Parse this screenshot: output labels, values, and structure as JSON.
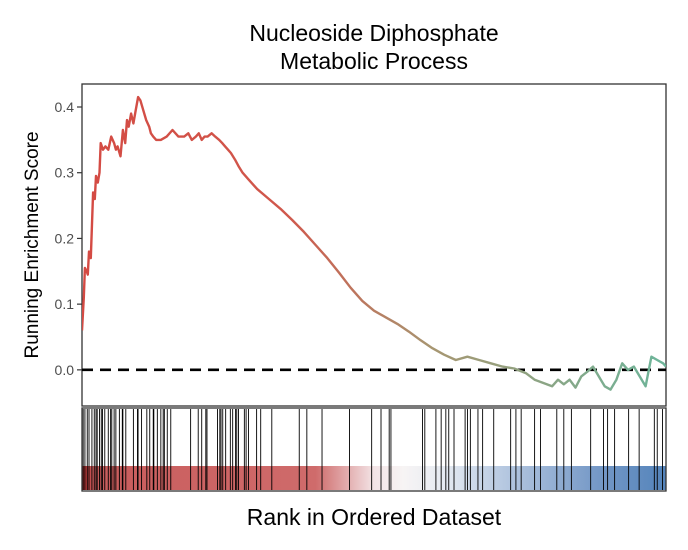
{
  "chart_data": {
    "type": "line",
    "title_lines": [
      "Nucleoside Diphosphate",
      "Metabolic Process"
    ],
    "xlabel": "Rank in Ordered Dataset",
    "ylabel": "Running Enrichment Score",
    "xlim": [
      0,
      1000
    ],
    "ylim": [
      -0.055,
      0.435
    ],
    "y_ticks": [
      0.0,
      0.1,
      0.2,
      0.3,
      0.4
    ],
    "y_tick_labels": [
      "0.0",
      "0.1",
      "0.2",
      "0.3",
      "0.4"
    ],
    "reference_line": 0.0,
    "grid": false,
    "legend": "none",
    "series": [
      {
        "x": [
          0,
          3,
          5,
          8,
          10,
          12,
          15,
          19,
          22,
          24,
          27,
          30,
          32,
          36,
          40,
          45,
          50,
          55,
          58,
          61,
          66,
          70,
          74,
          77,
          80,
          84,
          88,
          92,
          96,
          100,
          105,
          110,
          115,
          118,
          122,
          127,
          135,
          145,
          155,
          165,
          175,
          182,
          188,
          195,
          200,
          205,
          210,
          215,
          222,
          228,
          235,
          240,
          245,
          250,
          255,
          262,
          268,
          275,
          285,
          300,
          320,
          340,
          360,
          380,
          400,
          420,
          440,
          460,
          480,
          500,
          520,
          540,
          560,
          580,
          600,
          620,
          640,
          660,
          680,
          700,
          720,
          740,
          760,
          775,
          790,
          805,
          815,
          825,
          835,
          845,
          855,
          865,
          875,
          885,
          895,
          905,
          915,
          925,
          935,
          945,
          955,
          965,
          975,
          985,
          995,
          1000
        ],
        "y": [
          0.06,
          0.11,
          0.155,
          0.15,
          0.145,
          0.18,
          0.17,
          0.27,
          0.26,
          0.295,
          0.285,
          0.3,
          0.345,
          0.335,
          0.34,
          0.335,
          0.355,
          0.345,
          0.335,
          0.34,
          0.325,
          0.365,
          0.345,
          0.38,
          0.37,
          0.39,
          0.375,
          0.395,
          0.415,
          0.41,
          0.395,
          0.38,
          0.37,
          0.36,
          0.355,
          0.35,
          0.35,
          0.355,
          0.365,
          0.355,
          0.355,
          0.36,
          0.35,
          0.355,
          0.36,
          0.35,
          0.355,
          0.355,
          0.36,
          0.355,
          0.35,
          0.345,
          0.34,
          0.335,
          0.33,
          0.32,
          0.31,
          0.3,
          0.29,
          0.275,
          0.26,
          0.245,
          0.228,
          0.21,
          0.19,
          0.17,
          0.148,
          0.125,
          0.105,
          0.09,
          0.08,
          0.07,
          0.058,
          0.045,
          0.033,
          0.023,
          0.015,
          0.02,
          0.015,
          0.01,
          0.005,
          0.002,
          -0.005,
          -0.015,
          -0.02,
          -0.025,
          -0.015,
          -0.022,
          -0.015,
          -0.027,
          -0.01,
          -0.003,
          0.005,
          -0.01,
          -0.025,
          -0.03,
          -0.015,
          0.01,
          0.0,
          0.005,
          -0.01,
          -0.025,
          0.02,
          0.015,
          0.01,
          0.005
        ],
        "color_start": "#d44a43",
        "color_end": "#6db59a"
      }
    ],
    "hit_positions": [
      2,
      5,
      9,
      12,
      17,
      21,
      24,
      26,
      30,
      33,
      35,
      39,
      45,
      49,
      51,
      55,
      58,
      64,
      69,
      70,
      75,
      88,
      95,
      96,
      102,
      111,
      116,
      122,
      123,
      129,
      135,
      139,
      141,
      146,
      152,
      186,
      199,
      205,
      212,
      214,
      232,
      236,
      238,
      241,
      246,
      254,
      258,
      263,
      265,
      268,
      278,
      281,
      285,
      299,
      306,
      325,
      372,
      385,
      411,
      458,
      496,
      512,
      526,
      529,
      583,
      587,
      606,
      615,
      623,
      628,
      637,
      656,
      660,
      665,
      678,
      686,
      705,
      734,
      743,
      752,
      775,
      785,
      813,
      825,
      838,
      871,
      893,
      900,
      912,
      936,
      954,
      980,
      985,
      994
    ],
    "colors": {
      "heat_red": "#c13a3a",
      "heat_mid": "#f5f2f2",
      "heat_blue": "#5b87bb",
      "axis": "#333333",
      "text": "#000000"
    }
  }
}
